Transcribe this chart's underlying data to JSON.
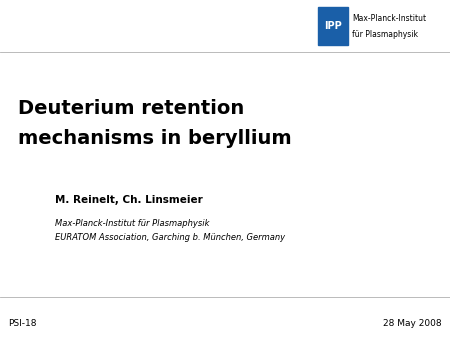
{
  "title_line1": "Deuterium retention",
  "title_line2": "mechanisms in beryllium",
  "author": "M. Reinelt, Ch. Linsmeier",
  "affiliation_line1": "Max-Planck-Institut für Plasmaphysik",
  "affiliation_line2": "EURATOM Association, Garching b. München, Germany",
  "footer_left": "PSI-18",
  "footer_right": "28 May 2008",
  "logo_text_line1": "Max-Planck-Institut",
  "logo_text_line2": "für Plasmaphysik",
  "logo_box_color": "#1a5fa8",
  "logo_box_text": "IPP",
  "bg_color": "#ffffff",
  "line_color": "#b0b0b0",
  "text_color": "#000000",
  "title_fontsize": 14,
  "author_fontsize": 7.5,
  "affil_fontsize": 6.0,
  "footer_fontsize": 6.5,
  "logo_text_fontsize": 5.5,
  "logo_ipp_fontsize": 7.0
}
